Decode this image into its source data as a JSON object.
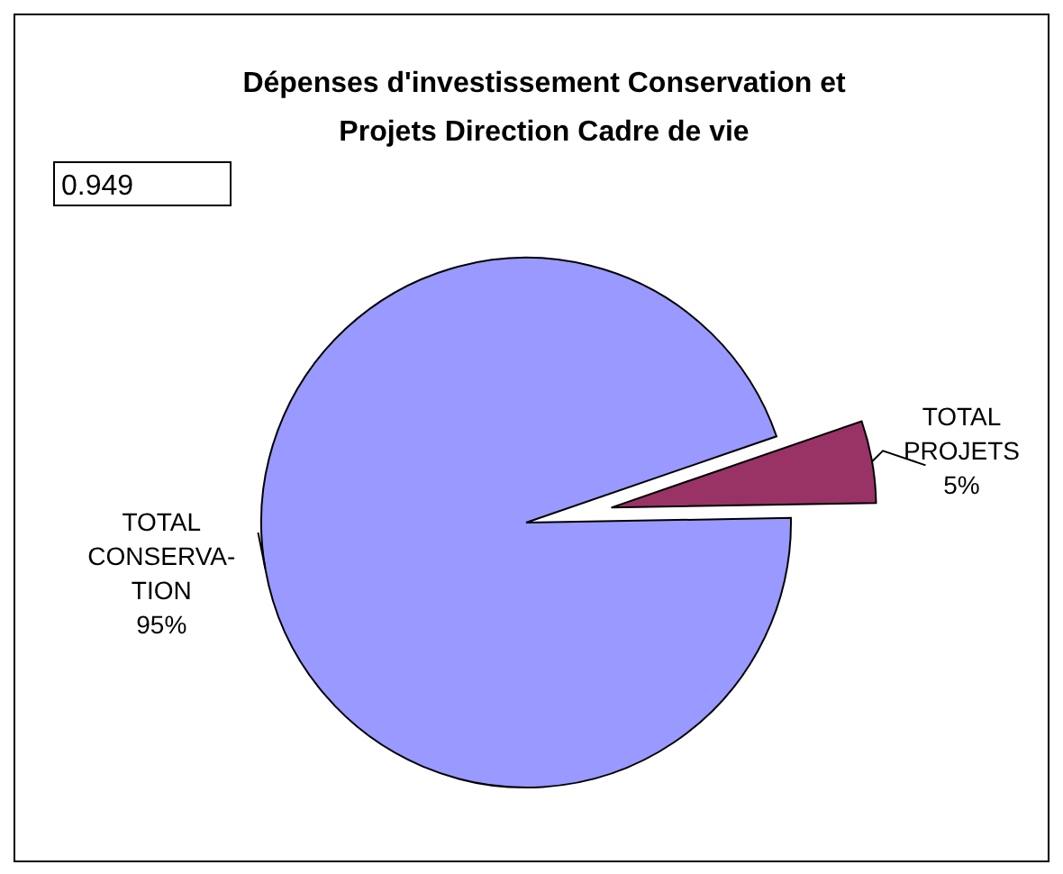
{
  "chart_data": {
    "type": "pie",
    "title": "Dépenses d'investissement Conservation et Projets Direction Cadre de vie",
    "categories": [
      "TOTAL CONSERVA- TION",
      "TOTAL PROJETS"
    ],
    "values": [
      95,
      5
    ],
    "colors": [
      "#9999ff",
      "#993366"
    ],
    "value_labels": [
      "95%",
      "5%"
    ],
    "annotations": [
      "0.949"
    ]
  }
}
